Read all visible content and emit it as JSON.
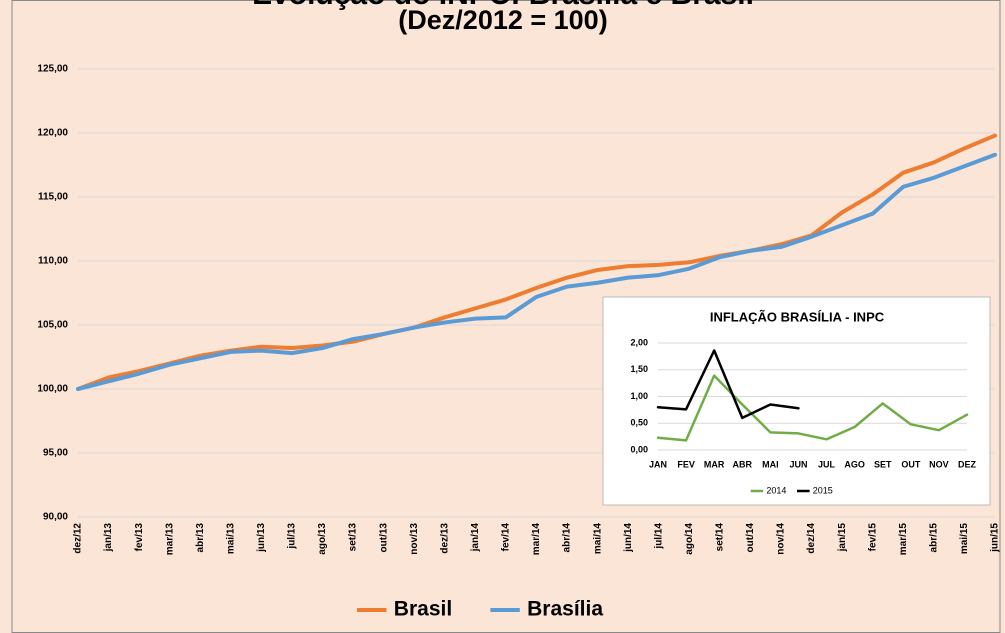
{
  "chart_data": [
    {
      "type": "line",
      "title": "Evolução do INPC: Brasília e Brasil",
      "subtitle": "(Dez/2012 = 100)",
      "categories": [
        "dez/12",
        "jan/13",
        "fev/13",
        "mar/13",
        "abr/13",
        "mai/13",
        "jun/13",
        "jul/13",
        "ago/13",
        "set/13",
        "out/13",
        "nov/13",
        "dez/13",
        "jan/14",
        "fev/14",
        "mar/14",
        "abr/14",
        "mai/14",
        "jun/14",
        "jul/14",
        "ago/14",
        "set/14",
        "out/14",
        "nov/14",
        "dez/14",
        "jan/15",
        "fev/15",
        "mar/15",
        "abr/15",
        "mai/15",
        "jun/15"
      ],
      "series": [
        {
          "name": "Brasil",
          "color": "#ed7d31",
          "values": [
            100.0,
            100.9,
            101.4,
            102.0,
            102.6,
            103.0,
            103.3,
            103.2,
            103.4,
            103.7,
            104.3,
            104.8,
            105.6,
            106.3,
            107.0,
            107.9,
            108.7,
            109.3,
            109.6,
            109.7,
            109.9,
            110.4,
            110.8,
            111.3,
            112.0,
            113.8,
            115.2,
            116.9,
            117.7,
            118.8,
            119.8
          ]
        },
        {
          "name": "Brasília",
          "color": "#5b9bd5",
          "values": [
            100.0,
            100.6,
            101.2,
            101.9,
            102.4,
            102.9,
            103.0,
            102.8,
            103.2,
            103.9,
            104.3,
            104.8,
            105.2,
            105.5,
            105.6,
            107.2,
            108.0,
            108.3,
            108.7,
            108.9,
            109.4,
            110.3,
            110.8,
            111.1,
            111.9,
            112.8,
            113.7,
            115.8,
            116.5,
            117.4,
            118.3
          ]
        }
      ],
      "ylim": [
        90,
        125
      ],
      "yticks": [
        {
          "value": 90,
          "label": "90,00"
        },
        {
          "value": 95,
          "label": "95,00"
        },
        {
          "value": 100,
          "label": "100,00"
        },
        {
          "value": 105,
          "label": "105,00"
        },
        {
          "value": 110,
          "label": "110,00"
        },
        {
          "value": 115,
          "label": "115,00"
        },
        {
          "value": 120,
          "label": "120,00"
        },
        {
          "value": 125,
          "label": "125,00"
        }
      ],
      "grid": true,
      "legend": "bottom"
    },
    {
      "type": "line",
      "title": "INFLAÇÃO BRASÍLIA - INPC",
      "categories": [
        "JAN",
        "FEV",
        "MAR",
        "ABR",
        "MAI",
        "JUN",
        "JUL",
        "AGO",
        "SET",
        "OUT",
        "NOV",
        "DEZ"
      ],
      "series": [
        {
          "name": "2014",
          "color": "#70ad47",
          "values": [
            0.23,
            0.18,
            1.39,
            0.85,
            0.33,
            0.31,
            0.2,
            0.43,
            0.87,
            0.48,
            0.37,
            0.66
          ]
        },
        {
          "name": "2015",
          "color": "#000000",
          "values": [
            0.8,
            0.76,
            1.86,
            0.6,
            0.85,
            0.78,
            null,
            null,
            null,
            null,
            null,
            null
          ]
        }
      ],
      "ylim": [
        0,
        2
      ],
      "yticks": [
        {
          "value": 0,
          "label": "0,00"
        },
        {
          "value": 0.5,
          "label": "0,50"
        },
        {
          "value": 1,
          "label": "1,00"
        },
        {
          "value": 1.5,
          "label": "1,50"
        },
        {
          "value": 2,
          "label": "2,00"
        }
      ],
      "grid": true,
      "legend": "bottom"
    }
  ]
}
